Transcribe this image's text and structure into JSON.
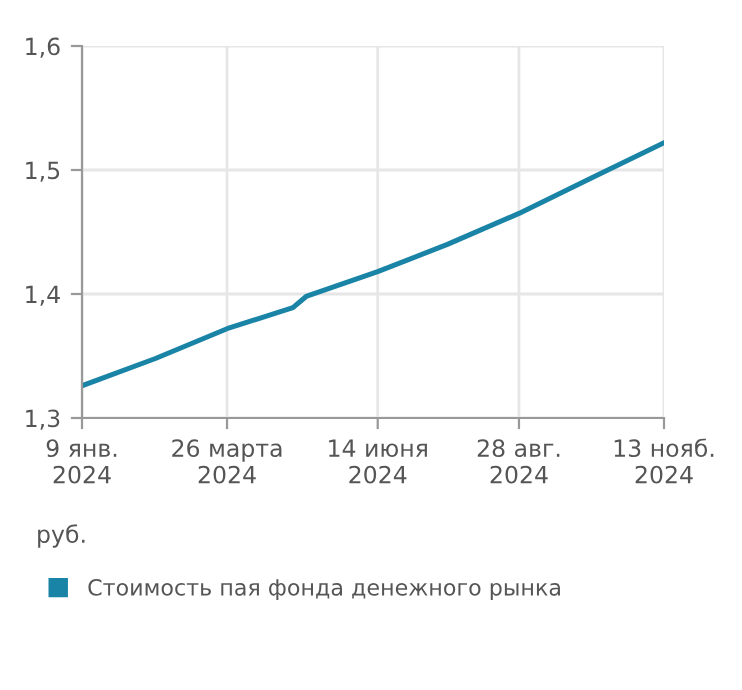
{
  "chart_data": {
    "type": "line",
    "x": [
      "2024-01-09",
      "2024-02-17",
      "2024-03-26",
      "2024-04-30",
      "2024-05-07",
      "2024-06-14",
      "2024-07-21",
      "2024-08-28",
      "2024-10-06",
      "2024-11-13"
    ],
    "series": [
      {
        "name": "Стоимость пая фонда денежного рынка",
        "color": "#1a84a6",
        "values": [
          1.326,
          1.348,
          1.372,
          1.389,
          1.398,
          1.418,
          1.44,
          1.465,
          1.494,
          1.522
        ]
      }
    ],
    "xlim": [
      "2024-01-09",
      "2024-11-13"
    ],
    "xticks": [
      {
        "value": "2024-01-09",
        "label": "9 янв.\n2024"
      },
      {
        "value": "2024-03-26",
        "label": "26 марта\n2024"
      },
      {
        "value": "2024-06-14",
        "label": "14 июня\n2024"
      },
      {
        "value": "2024-08-28",
        "label": "28 авг.\n2024"
      },
      {
        "value": "2024-11-13",
        "label": "13 нояб.\n2024"
      }
    ],
    "ylim": [
      1.3,
      1.6
    ],
    "yticks": [
      {
        "value": 1.3,
        "label": "1,3"
      },
      {
        "value": 1.4,
        "label": "1,4"
      },
      {
        "value": 1.5,
        "label": "1,5"
      },
      {
        "value": 1.6,
        "label": "1,6"
      }
    ],
    "grid": true,
    "legend": "bottom",
    "marker": "none",
    "line_style": "solid",
    "annotations": [
      "руб."
    ]
  }
}
